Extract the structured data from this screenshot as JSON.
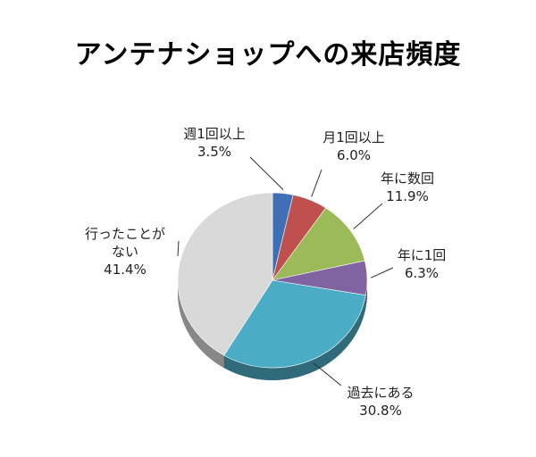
{
  "chart_data": {
    "type": "pie",
    "title": "アンテナショップへの来店頻度",
    "unit": "%",
    "slices": [
      {
        "name": "週1回以上",
        "value": 3.5,
        "label": "3.5%",
        "color": "#3f6fb5"
      },
      {
        "name": "月1回以上",
        "value": 6.0,
        "label": "6.0%",
        "color": "#c0504d"
      },
      {
        "name": "年に数回",
        "value": 11.9,
        "label": "11.9%",
        "color": "#9bbb59"
      },
      {
        "name": "年に1回",
        "value": 6.3,
        "label": "6.3%",
        "color": "#8064a2"
      },
      {
        "name": "過去にある",
        "value": 30.8,
        "label": "30.8%",
        "color": "#4bacc6"
      },
      {
        "name": "行ったことがない",
        "value": 41.4,
        "label": "41.4%",
        "color": "#d9d9d9"
      }
    ]
  }
}
